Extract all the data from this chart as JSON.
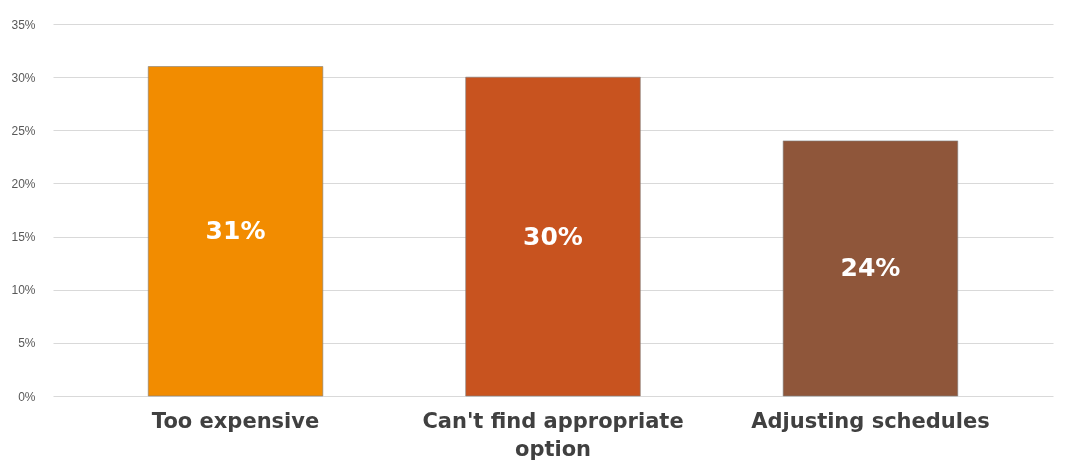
{
  "chart_data": {
    "type": "bar",
    "categories": [
      "Too expensive",
      "Can't find appropriate option",
      "Adjusting schedules"
    ],
    "values": [
      31,
      30,
      24
    ],
    "colors": [
      "#f28c00",
      "#c8531f",
      "#8f563a"
    ],
    "value_labels": [
      "31%",
      "30%",
      "24%"
    ],
    "ylim": [
      0,
      35
    ],
    "yticks": [
      {
        "value": 0,
        "label": "0%"
      },
      {
        "value": 5,
        "label": "5%"
      },
      {
        "value": 10,
        "label": "10%"
      },
      {
        "value": 15,
        "label": "15%"
      },
      {
        "value": 20,
        "label": "20%"
      },
      {
        "value": 25,
        "label": "25%"
      },
      {
        "value": 30,
        "label": "30%"
      },
      {
        "value": 35,
        "label": "35%"
      }
    ],
    "grid": "y"
  }
}
